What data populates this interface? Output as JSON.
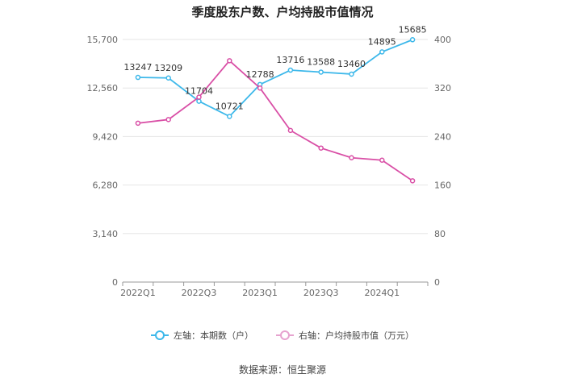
{
  "title": "季度股东户数、户均持股市值情况",
  "source": "数据来源：恒生聚源",
  "legend": {
    "left_label": "左轴：本期数（户）",
    "right_label": "右轴：户均持股市值（万元）"
  },
  "colors": {
    "left": "#3db8ea",
    "right": "#d94fa6",
    "grid": "#e6e6e6",
    "axis": "#999999"
  },
  "chart_data": {
    "type": "line",
    "x": [
      "2022Q1",
      "2022Q2",
      "2022Q3",
      "2022Q4",
      "2023Q1",
      "2023Q2",
      "2023Q3",
      "2023Q4",
      "2024Q1",
      "2024Q2"
    ],
    "x_tick_labels": [
      "2022Q1",
      "2022Q3",
      "2023Q1",
      "2023Q3",
      "2024Q1"
    ],
    "left_axis": {
      "ticks": [
        "0",
        "3,140",
        "6,280",
        "9,420",
        "12,560",
        "15,700"
      ],
      "min": 0,
      "max": 15700
    },
    "right_axis": {
      "ticks": [
        "0",
        "80",
        "160",
        "240",
        "320",
        "400"
      ],
      "min": 0,
      "max": 400
    },
    "series": [
      {
        "name": "本期数（户）",
        "axis": "left",
        "values": [
          13247,
          13209,
          11704,
          10721,
          12788,
          13716,
          13588,
          13460,
          14895,
          15685
        ],
        "labels": [
          "13247",
          "13209",
          "11704",
          "10721",
          "12788",
          "13716",
          "13588",
          "13460",
          "14895",
          "15685"
        ]
      },
      {
        "name": "户均持股市值（万元）",
        "axis": "right",
        "values": [
          262,
          268,
          305,
          365,
          320,
          250,
          221,
          205,
          201,
          167
        ]
      }
    ],
    "grid": true,
    "legend_position": "bottom"
  }
}
